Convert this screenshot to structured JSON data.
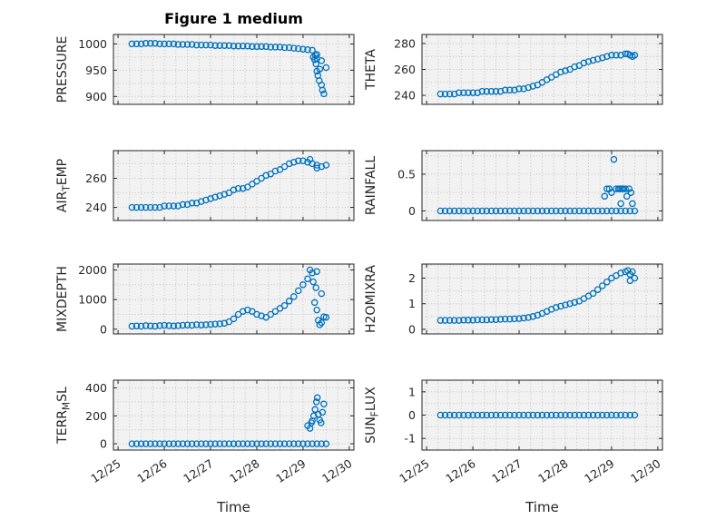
{
  "colors": {
    "marker": "#0072BD",
    "plot_bg": "#f2f2f2",
    "grid": "#c4c4c4",
    "axis": "#262626",
    "text": "#262626",
    "figure_bg": "#ffffff"
  },
  "chart_data": {
    "type": "scatter",
    "title": "Figure 1 medium",
    "xlabel": "Time",
    "marker": "open-circle",
    "grid": "on-dotted",
    "x_ticks": {
      "values": [
        0,
        1,
        2,
        3,
        4,
        5
      ],
      "labels": [
        "12/25",
        "12/26",
        "12/27",
        "12/28",
        "12/29",
        "12/30"
      ]
    },
    "xlim": [
      -0.1,
      5.1
    ],
    "x_main": [
      0.3,
      0.4,
      0.5,
      0.6,
      0.7,
      0.8,
      0.9,
      1.0,
      1.1,
      1.2,
      1.3,
      1.4,
      1.5,
      1.6,
      1.7,
      1.8,
      1.9,
      2.0,
      2.1,
      2.2,
      2.3,
      2.4,
      2.5,
      2.6,
      2.7,
      2.8,
      2.9,
      3.0,
      3.1,
      3.2,
      3.3,
      3.4,
      3.5,
      3.6,
      3.7,
      3.8,
      3.9,
      4.0,
      4.1,
      4.2,
      4.3,
      4.4,
      4.5
    ],
    "subplots": [
      {
        "name": "PRESSURE",
        "ylabel_parts": [
          {
            "text": "PRESSURE",
            "sub": false
          }
        ],
        "ylim": [
          885,
          1018
        ],
        "yticks": [
          900,
          950,
          1000
        ],
        "y": [
          1000,
          1000,
          1000,
          1001,
          1001,
          1001,
          1000,
          1000,
          1000,
          1000,
          999,
          999,
          999,
          999,
          998,
          998,
          998,
          998,
          997,
          997,
          997,
          997,
          996,
          996,
          996,
          996,
          995,
          995,
          995,
          995,
          994,
          994,
          994,
          993,
          993,
          992,
          991,
          990,
          989,
          988,
          980,
          968,
          955
        ],
        "extra": [
          [
            4.22,
            975
          ],
          [
            4.25,
            970
          ],
          [
            4.27,
            978
          ],
          [
            4.28,
            962
          ],
          [
            4.3,
            972
          ],
          [
            4.3,
            948
          ],
          [
            4.32,
            940
          ],
          [
            4.35,
            930
          ],
          [
            4.36,
            952
          ],
          [
            4.4,
            922
          ],
          [
            4.42,
            912
          ],
          [
            4.45,
            905
          ]
        ]
      },
      {
        "name": "THETA",
        "ylabel_parts": [
          {
            "text": "THETA",
            "sub": false
          }
        ],
        "ylim": [
          233,
          287
        ],
        "yticks": [
          240,
          260,
          280
        ],
        "y": [
          241,
          241,
          241,
          241,
          242,
          242,
          242,
          242,
          242,
          243,
          243,
          243,
          243,
          243,
          244,
          244,
          244,
          245,
          245,
          246,
          247,
          248,
          250,
          252,
          254,
          256,
          258,
          259,
          260,
          262,
          263,
          265,
          266,
          267,
          268,
          269,
          270,
          271,
          271,
          271,
          272,
          271,
          271
        ],
        "extra": [
          [
            4.35,
            272
          ],
          [
            4.45,
            270
          ]
        ]
      },
      {
        "name": "AIR_TEMP",
        "ylabel_parts": [
          {
            "text": "AIR",
            "sub": false
          },
          {
            "text": "T",
            "sub": true
          },
          {
            "text": "EMP",
            "sub": false
          }
        ],
        "ylim": [
          231,
          279
        ],
        "yticks": [
          240,
          260
        ],
        "y": [
          240,
          240,
          240,
          240,
          240,
          240,
          240,
          241,
          241,
          241,
          241,
          242,
          242,
          243,
          243,
          244,
          245,
          246,
          247,
          248,
          249,
          250,
          252,
          253,
          253,
          254,
          256,
          258,
          260,
          262,
          263,
          265,
          266,
          268,
          270,
          271,
          272,
          272,
          271,
          270,
          269,
          268,
          269
        ],
        "extra": [
          [
            4.15,
            273
          ],
          [
            4.3,
            267
          ]
        ]
      },
      {
        "name": "RAINFALL",
        "ylabel_parts": [
          {
            "text": "RAINFALL",
            "sub": false
          }
        ],
        "ylim": [
          -0.13,
          0.82
        ],
        "yticks": [
          0,
          0.5
        ],
        "y": [
          0,
          0,
          0,
          0,
          0,
          0,
          0,
          0,
          0,
          0,
          0,
          0,
          0,
          0,
          0,
          0,
          0,
          0,
          0,
          0,
          0,
          0,
          0,
          0,
          0,
          0,
          0,
          0,
          0,
          0,
          0,
          0,
          0,
          0,
          0,
          0,
          0,
          0,
          0,
          0,
          0,
          0,
          0
        ],
        "extra": [
          [
            3.85,
            0.2
          ],
          [
            3.9,
            0.3
          ],
          [
            3.95,
            0.3
          ],
          [
            4.0,
            0.25
          ],
          [
            4.05,
            0.7
          ],
          [
            4.1,
            0.3
          ],
          [
            4.15,
            0.3
          ],
          [
            4.18,
            0.3
          ],
          [
            4.2,
            0.1
          ],
          [
            4.22,
            0.3
          ],
          [
            4.25,
            0.3
          ],
          [
            4.3,
            0.3
          ],
          [
            4.33,
            0.2
          ],
          [
            4.38,
            0.3
          ],
          [
            4.42,
            0.25
          ],
          [
            4.45,
            0.1
          ]
        ]
      },
      {
        "name": "MIXDEPTH",
        "ylabel_parts": [
          {
            "text": "MIXDEPTH",
            "sub": false
          }
        ],
        "ylim": [
          -160,
          2200
        ],
        "yticks": [
          0,
          1000,
          2000
        ],
        "y": [
          100,
          110,
          100,
          120,
          110,
          100,
          120,
          130,
          120,
          110,
          120,
          130,
          140,
          130,
          150,
          140,
          150,
          160,
          170,
          180,
          200,
          250,
          350,
          500,
          600,
          650,
          600,
          500,
          450,
          400,
          500,
          600,
          700,
          800,
          950,
          1100,
          1300,
          1500,
          1700,
          1900,
          1950,
          1200,
          400
        ],
        "extra": [
          [
            4.15,
            2000
          ],
          [
            4.22,
            1600
          ],
          [
            4.25,
            900
          ],
          [
            4.28,
            1400
          ],
          [
            4.3,
            650
          ],
          [
            4.33,
            300
          ],
          [
            4.36,
            150
          ],
          [
            4.4,
            220
          ],
          [
            4.45,
            420
          ]
        ]
      },
      {
        "name": "H2OMIXRA",
        "ylabel_parts": [
          {
            "text": "H2OMIXRA",
            "sub": false
          }
        ],
        "ylim": [
          -0.18,
          2.55
        ],
        "yticks": [
          0,
          1,
          2
        ],
        "y": [
          0.35,
          0.35,
          0.35,
          0.35,
          0.35,
          0.36,
          0.36,
          0.36,
          0.37,
          0.37,
          0.37,
          0.38,
          0.38,
          0.39,
          0.4,
          0.4,
          0.41,
          0.42,
          0.44,
          0.46,
          0.5,
          0.55,
          0.62,
          0.7,
          0.78,
          0.85,
          0.9,
          0.95,
          1.0,
          1.05,
          1.1,
          1.2,
          1.3,
          1.4,
          1.55,
          1.7,
          1.85,
          2.0,
          2.1,
          2.2,
          2.25,
          2.15,
          2.0
        ],
        "extra": [
          [
            4.35,
            2.3
          ],
          [
            4.4,
            1.9
          ],
          [
            4.45,
            2.25
          ]
        ]
      },
      {
        "name": "TERR_MSL",
        "ylabel_parts": [
          {
            "text": "TERR",
            "sub": false
          },
          {
            "text": "M",
            "sub": true
          },
          {
            "text": "SL",
            "sub": false
          }
        ],
        "ylim": [
          -45,
          455
        ],
        "yticks": [
          0,
          200,
          400
        ],
        "y": [
          0,
          0,
          0,
          0,
          0,
          0,
          0,
          0,
          0,
          0,
          0,
          0,
          0,
          0,
          0,
          0,
          0,
          0,
          0,
          0,
          0,
          0,
          0,
          0,
          0,
          0,
          0,
          0,
          0,
          0,
          0,
          0,
          0,
          0,
          0,
          0,
          0,
          0,
          0,
          0,
          0,
          0,
          0
        ],
        "extra": [
          [
            4.1,
            130
          ],
          [
            4.15,
            110
          ],
          [
            4.18,
            150
          ],
          [
            4.2,
            165
          ],
          [
            4.23,
            200
          ],
          [
            4.26,
            245
          ],
          [
            4.29,
            300
          ],
          [
            4.31,
            330
          ],
          [
            4.33,
            210
          ],
          [
            4.36,
            170
          ],
          [
            4.39,
            150
          ],
          [
            4.42,
            225
          ],
          [
            4.45,
            285
          ]
        ]
      },
      {
        "name": "SUN_FLUX",
        "ylabel_parts": [
          {
            "text": "SUN",
            "sub": false
          },
          {
            "text": "F",
            "sub": true
          },
          {
            "text": "LUX",
            "sub": false
          }
        ],
        "ylim": [
          -1.5,
          1.5
        ],
        "yticks": [
          -1,
          0,
          1
        ],
        "y": [
          0,
          0,
          0,
          0,
          0,
          0,
          0,
          0,
          0,
          0,
          0,
          0,
          0,
          0,
          0,
          0,
          0,
          0,
          0,
          0,
          0,
          0,
          0,
          0,
          0,
          0,
          0,
          0,
          0,
          0,
          0,
          0,
          0,
          0,
          0,
          0,
          0,
          0,
          0,
          0,
          0,
          0,
          0
        ],
        "extra": []
      }
    ]
  }
}
